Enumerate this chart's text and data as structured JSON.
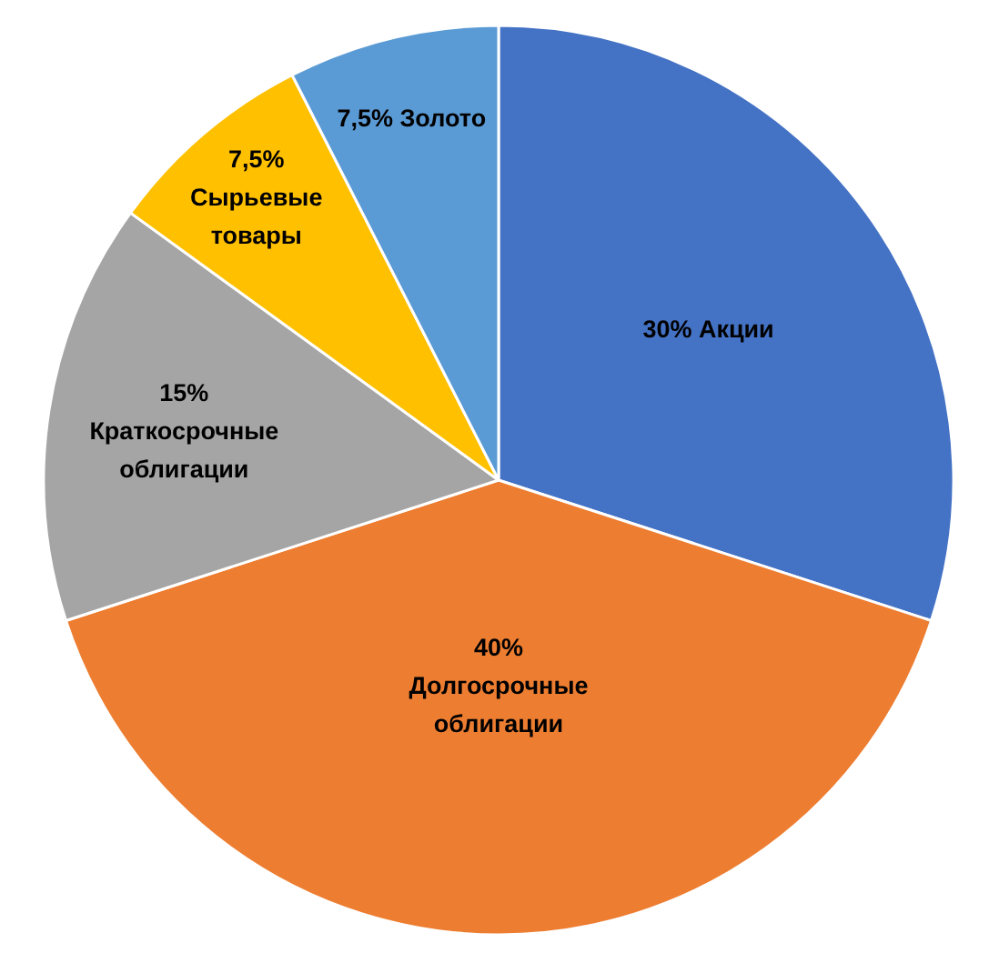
{
  "chart_data": {
    "type": "pie",
    "categories": [
      "Акции",
      "Долгосрочные облигации",
      "Краткосрочные облигации",
      "Сырьевые товары",
      "Золото"
    ],
    "values": [
      30,
      40,
      15,
      7.5,
      7.5
    ],
    "value_labels": [
      "30%",
      "40%",
      "15%",
      "7,5%",
      "7,5%"
    ],
    "colors": [
      "#4472c4",
      "#ed7d31",
      "#a5a5a5",
      "#ffc000",
      "#5b9bd5"
    ]
  }
}
